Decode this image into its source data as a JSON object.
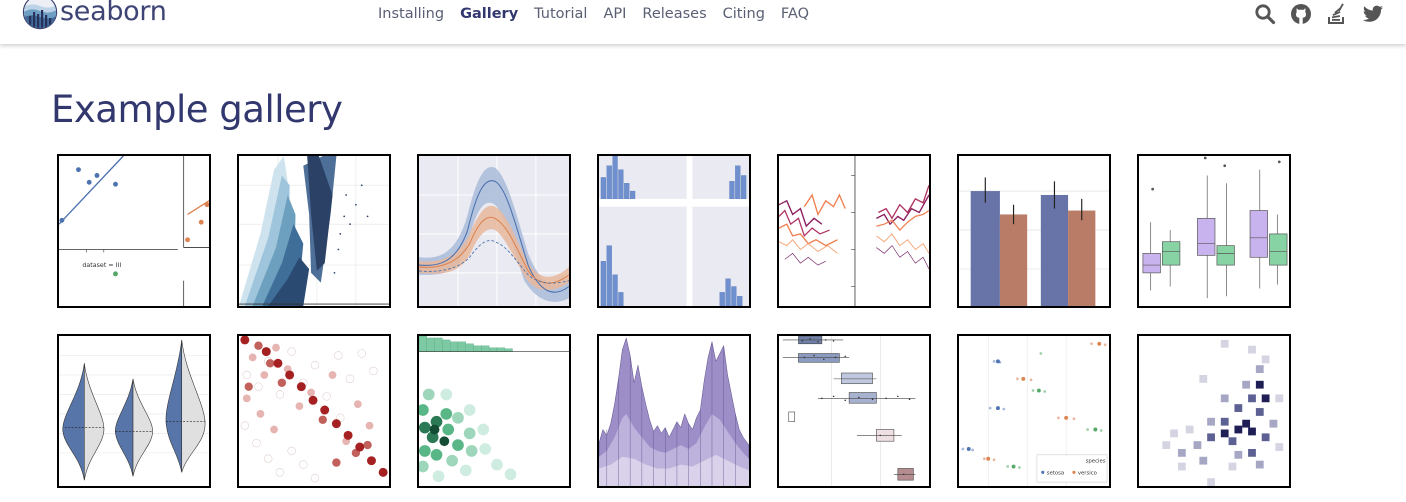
{
  "header": {
    "brand": "seaborn",
    "nav": [
      {
        "label": "Installing",
        "active": false
      },
      {
        "label": "Gallery",
        "active": true
      },
      {
        "label": "Tutorial",
        "active": false
      },
      {
        "label": "API",
        "active": false
      },
      {
        "label": "Releases",
        "active": false
      },
      {
        "label": "Citing",
        "active": false
      },
      {
        "label": "FAQ",
        "active": false
      }
    ],
    "icons": [
      "search-icon",
      "github-icon",
      "stackoverflow-icon",
      "twitter-icon"
    ]
  },
  "main": {
    "title": "Example gallery",
    "thumbnails": [
      {
        "name": "anscombes-quartet-thumbnail",
        "label": "dataset = III"
      },
      {
        "name": "scatter-density-thumbnail"
      },
      {
        "name": "timeseries-bands-thumbnail"
      },
      {
        "name": "pair-grid-thumbnail"
      },
      {
        "name": "wide-line-plots-thumbnail"
      },
      {
        "name": "grouped-barplot-thumbnail"
      },
      {
        "name": "grouped-boxplot-thumbnail"
      },
      {
        "name": "split-violin-thumbnail"
      },
      {
        "name": "heatmap-dots-thumbnail"
      },
      {
        "name": "hexbin-marginal-thumbnail"
      },
      {
        "name": "stacked-histogram-thumbnail"
      },
      {
        "name": "horizontal-boxplot-thumbnail"
      },
      {
        "name": "pointplot-strips-thumbnail",
        "legend_title": "species",
        "legend_items": [
          "setosa",
          "versico"
        ]
      },
      {
        "name": "bivariate-histogram-thumbnail"
      }
    ]
  },
  "colors": {
    "brand": "#3e4474",
    "nav_text": "#5a5f74",
    "nav_active": "#32386d",
    "title": "#32386d",
    "blue": "#4c72b0",
    "orange": "#dd8452",
    "green": "#55a868"
  }
}
